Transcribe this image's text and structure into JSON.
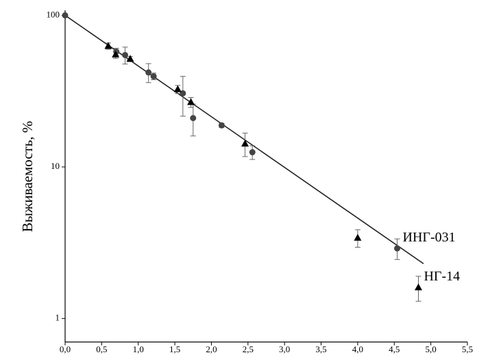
{
  "chart_data": {
    "type": "scatter",
    "ylabel": "Выживаемость, %",
    "log_y": true,
    "xlim": [
      0,
      5.5
    ],
    "ylim": [
      0.7,
      108
    ],
    "xticks": [
      {
        "value": 0,
        "label": "0,0"
      },
      {
        "value": 0.5,
        "label": "0,5"
      },
      {
        "value": 1,
        "label": "1,0"
      },
      {
        "value": 1.5,
        "label": "1,5"
      },
      {
        "value": 2,
        "label": "2,0"
      },
      {
        "value": 2.5,
        "label": "2,5"
      },
      {
        "value": 3,
        "label": "3,0"
      },
      {
        "value": 3.5,
        "label": "3,5"
      },
      {
        "value": 4,
        "label": "4,0"
      },
      {
        "value": 4.5,
        "label": "4,5"
      },
      {
        "value": 5,
        "label": "5,0"
      },
      {
        "value": 5.5,
        "label": "5,5"
      }
    ],
    "yticks": [
      1,
      10,
      100
    ],
    "series": [
      {
        "name": "ИНГ-031",
        "marker": "circle",
        "color": "#444444",
        "x": [
          0,
          0.7,
          0.82,
          1.14,
          1.21,
          1.61,
          1.75,
          2.14,
          2.56,
          4.54
        ],
        "values": [
          100,
          57.6,
          54.7,
          42,
          39.6,
          30.6,
          21,
          18.8,
          12.5,
          2.9
        ],
        "errors": [
          0,
          3,
          7,
          6,
          2,
          9,
          5,
          0.6,
          1.3,
          0.45
        ]
      },
      {
        "name": "НГ-14",
        "marker": "triangle",
        "color": "#000000",
        "x": [
          0.59,
          0.69,
          0.89,
          1.54,
          1.72,
          2.46,
          4.0,
          4.83
        ],
        "values": [
          62.7,
          55,
          51.5,
          32.5,
          26.7,
          14.2,
          3.4,
          1.6
        ],
        "errors": [
          3,
          3,
          2,
          2,
          2,
          2.5,
          0.45,
          0.3
        ]
      }
    ],
    "fit": {
      "color": "#222222",
      "x": [
        0,
        4.9
      ],
      "values": [
        100,
        2.3
      ]
    }
  }
}
